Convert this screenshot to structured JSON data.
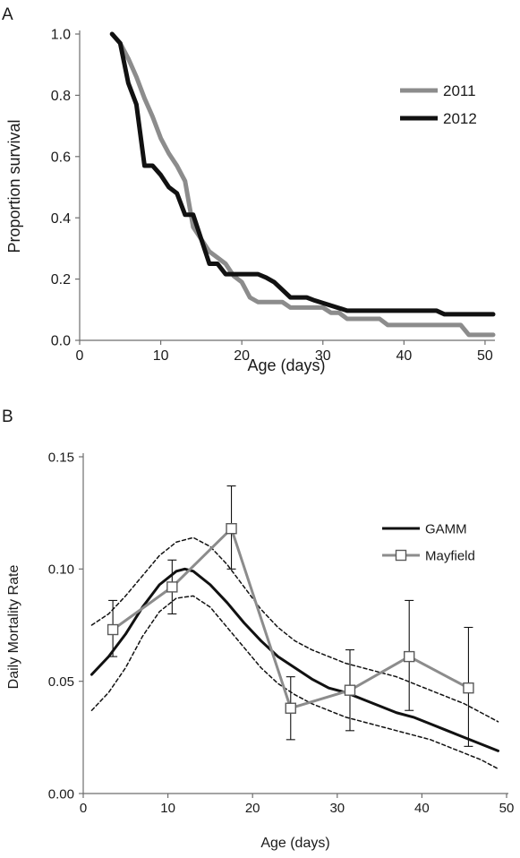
{
  "chart_data": [
    {
      "type": "line",
      "panel_label": "A",
      "xlabel": "Age (days)",
      "ylabel": "Proportion survival",
      "xlim": [
        0,
        51
      ],
      "ylim": [
        0,
        1.0
      ],
      "x_ticks": [
        0,
        10,
        20,
        30,
        40,
        50
      ],
      "y_ticks": [
        0.0,
        0.2,
        0.4,
        0.6,
        0.8,
        1.0
      ],
      "x_tick_labels": [
        "0",
        "10",
        "20",
        "30",
        "40",
        "50"
      ],
      "y_tick_labels": [
        "0.0",
        "0.2",
        "0.4",
        "0.6",
        "0.8",
        "1.0"
      ],
      "grid": false,
      "legend": "right",
      "series": [
        {
          "name": "2011",
          "color": "#8c8c8c",
          "x": [
            4,
            5,
            6,
            7,
            8,
            9,
            10,
            11,
            12,
            13,
            14,
            15,
            16,
            17,
            18,
            19,
            20,
            21,
            22,
            25,
            26,
            30,
            31,
            32,
            33,
            37,
            38,
            47,
            48,
            51
          ],
          "y": [
            1.0,
            0.97,
            0.92,
            0.86,
            0.79,
            0.73,
            0.66,
            0.61,
            0.57,
            0.52,
            0.37,
            0.33,
            0.29,
            0.27,
            0.25,
            0.21,
            0.19,
            0.14,
            0.125,
            0.125,
            0.107,
            0.107,
            0.09,
            0.09,
            0.07,
            0.07,
            0.05,
            0.05,
            0.018,
            0.018
          ]
        },
        {
          "name": "2012",
          "color": "#111111",
          "x": [
            4,
            5,
            6,
            7,
            8,
            9,
            10,
            11,
            12,
            13,
            14,
            15,
            16,
            17,
            18,
            22,
            23,
            24,
            25,
            26,
            28,
            29,
            33,
            34,
            44,
            45,
            51
          ],
          "y": [
            1.0,
            0.97,
            0.84,
            0.77,
            0.57,
            0.57,
            0.54,
            0.5,
            0.48,
            0.41,
            0.41,
            0.33,
            0.25,
            0.25,
            0.216,
            0.216,
            0.205,
            0.19,
            0.165,
            0.14,
            0.14,
            0.13,
            0.097,
            0.097,
            0.097,
            0.085,
            0.085
          ]
        }
      ]
    },
    {
      "type": "line",
      "panel_label": "B",
      "xlabel": "Age (days)",
      "ylabel": "Daily Mortality Rate",
      "xlim": [
        0,
        50
      ],
      "ylim": [
        0,
        0.15
      ],
      "x_ticks": [
        0,
        10,
        20,
        30,
        40,
        50
      ],
      "y_ticks": [
        0.0,
        0.05,
        0.1,
        0.15
      ],
      "x_tick_labels": [
        "0",
        "10",
        "20",
        "30",
        "40",
        "50"
      ],
      "y_tick_labels": [
        "0.00",
        "0.05",
        "0.10",
        "0.15"
      ],
      "grid": false,
      "legend": "right",
      "series": [
        {
          "name": "GAMM",
          "color": "#111111",
          "style": "solid",
          "x": [
            1,
            3,
            5,
            7,
            9,
            11,
            12,
            13,
            15,
            17,
            19,
            21,
            23,
            25,
            27,
            29,
            31,
            33,
            35,
            37,
            39,
            41,
            43,
            45,
            47,
            49
          ],
          "y": [
            0.053,
            0.061,
            0.071,
            0.083,
            0.093,
            0.099,
            0.1,
            0.099,
            0.093,
            0.085,
            0.076,
            0.068,
            0.061,
            0.056,
            0.051,
            0.047,
            0.045,
            0.042,
            0.039,
            0.036,
            0.034,
            0.031,
            0.028,
            0.025,
            0.022,
            0.019
          ]
        },
        {
          "name": "GAMM upper CI",
          "color": "#111111",
          "style": "dashed",
          "x": [
            1,
            3,
            5,
            7,
            9,
            11,
            13,
            15,
            17,
            19,
            21,
            23,
            25,
            27,
            29,
            31,
            33,
            35,
            37,
            39,
            41,
            43,
            45,
            47,
            49
          ],
          "y": [
            0.075,
            0.08,
            0.088,
            0.097,
            0.106,
            0.112,
            0.114,
            0.11,
            0.102,
            0.092,
            0.082,
            0.074,
            0.068,
            0.064,
            0.061,
            0.058,
            0.056,
            0.054,
            0.052,
            0.049,
            0.046,
            0.043,
            0.04,
            0.036,
            0.032
          ]
        },
        {
          "name": "GAMM lower CI",
          "color": "#111111",
          "style": "dashed",
          "x": [
            1,
            3,
            5,
            7,
            9,
            11,
            13,
            15,
            17,
            19,
            21,
            23,
            25,
            27,
            29,
            31,
            33,
            35,
            37,
            39,
            41,
            43,
            45,
            47,
            49
          ],
          "y": [
            0.037,
            0.045,
            0.056,
            0.07,
            0.081,
            0.087,
            0.088,
            0.083,
            0.074,
            0.065,
            0.056,
            0.049,
            0.044,
            0.04,
            0.037,
            0.034,
            0.032,
            0.03,
            0.028,
            0.026,
            0.024,
            0.021,
            0.018,
            0.015,
            0.011
          ]
        },
        {
          "name": "Mayfield",
          "color": "#8c8c8c",
          "marker": "square",
          "x": [
            3.5,
            10.5,
            17.5,
            24.5,
            31.5,
            38.5,
            45.5
          ],
          "y": [
            0.073,
            0.092,
            0.118,
            0.038,
            0.046,
            0.061,
            0.047
          ],
          "err_low": [
            0.061,
            0.08,
            0.1,
            0.024,
            0.028,
            0.037,
            0.021
          ],
          "err_high": [
            0.086,
            0.104,
            0.137,
            0.052,
            0.064,
            0.086,
            0.074
          ]
        }
      ]
    }
  ]
}
